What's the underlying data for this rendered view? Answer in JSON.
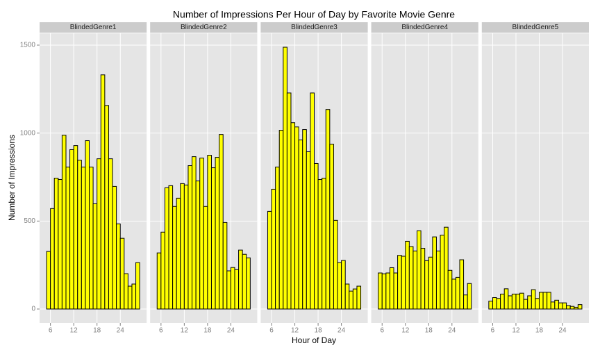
{
  "chart_data": {
    "type": "histogram",
    "title": "Number of Impressions Per Hour of Day by Favorite Movie Genre",
    "x_label": "Hour of Day",
    "y_label": "Number of Impressions",
    "bins": [
      5,
      6,
      7,
      8,
      9,
      10,
      11,
      12,
      13,
      14,
      15,
      16,
      17,
      18,
      19,
      20,
      21,
      22,
      23,
      24,
      25,
      26,
      27,
      28,
      29
    ],
    "facets": [
      {
        "name": "BlindedGenre1",
        "values": [
          327,
          571,
          744,
          736,
          988,
          807,
          906,
          929,
          846,
          807,
          957,
          807,
          598,
          854,
          1331,
          1157,
          854,
          697,
          484,
          402,
          201,
          130,
          142,
          264
        ]
      },
      {
        "name": "BlindedGenre2",
        "values": [
          319,
          437,
          689,
          701,
          583,
          630,
          713,
          705,
          815,
          866,
          728,
          858,
          583,
          874,
          803,
          862,
          992,
          492,
          217,
          236,
          224,
          335,
          311,
          291
        ]
      },
      {
        "name": "BlindedGenre3",
        "values": [
          555,
          681,
          807,
          1016,
          1488,
          1228,
          1059,
          1035,
          961,
          1020,
          894,
          1228,
          827,
          736,
          744,
          1134,
          937,
          504,
          264,
          276,
          142,
          102,
          114,
          130
        ]
      },
      {
        "name": "BlindedGenre4",
        "values": [
          205,
          200,
          205,
          235,
          205,
          305,
          300,
          385,
          355,
          330,
          445,
          345,
          275,
          295,
          410,
          330,
          420,
          465,
          220,
          170,
          180,
          280,
          80,
          145
        ]
      },
      {
        "name": "BlindedGenre5",
        "values": [
          45,
          65,
          60,
          85,
          115,
          75,
          85,
          85,
          90,
          55,
          75,
          110,
          60,
          95,
          95,
          95,
          40,
          50,
          35,
          35,
          20,
          15,
          10,
          25
        ]
      }
    ],
    "xlim": [
      3.2,
      30.8
    ],
    "ylim": [
      -79,
      1567
    ],
    "xticks": [
      6,
      12,
      18,
      24
    ],
    "yticks": [
      0,
      500,
      1000,
      1500
    ],
    "grid": true,
    "bar_color": "#ffff00",
    "edge_color": "#000000"
  }
}
